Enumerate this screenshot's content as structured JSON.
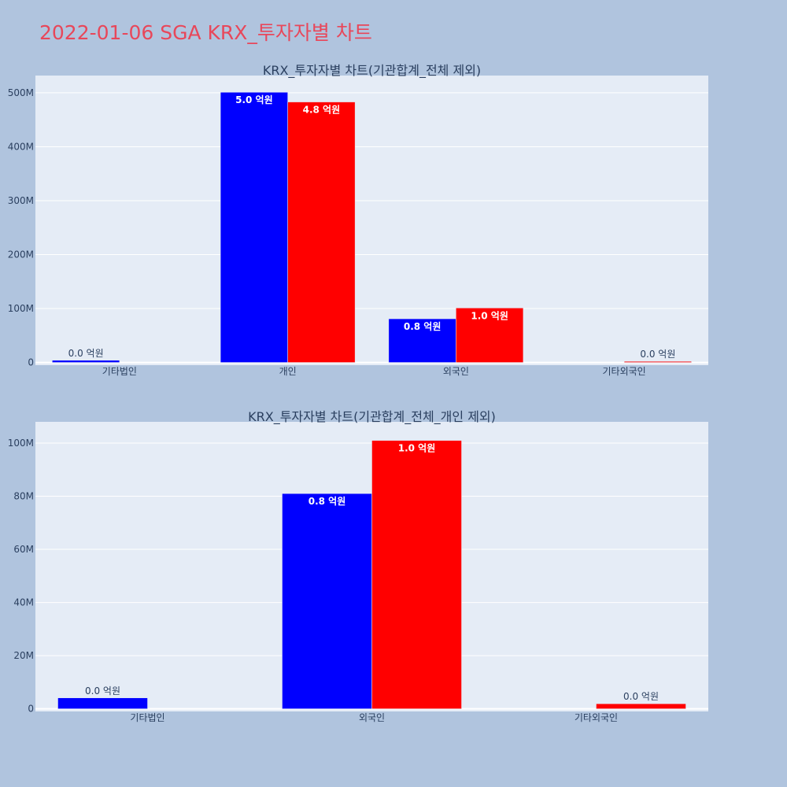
{
  "page": {
    "title": "2022-01-06 SGA KRX_투자자별 차트",
    "title_color": "#e8475a",
    "background": "#b0c4de",
    "plot_background": "#e5ecf6"
  },
  "chart_data": [
    {
      "type": "bar",
      "title": "KRX_투자자별 차트(기관합계_전체 제외)",
      "categories": [
        "기타법인",
        "개인",
        "외국인",
        "기타외국인"
      ],
      "series": [
        {
          "color": "#0000ff",
          "values": [
            4000000,
            501000000,
            81000000,
            0
          ],
          "labels": [
            "0.0 억원",
            "5.0 억원",
            "0.8 억원",
            ""
          ]
        },
        {
          "color": "#ff0000",
          "values": [
            0,
            483000000,
            101000000,
            2000000
          ],
          "labels": [
            "",
            "4.8 억원",
            "1.0 억원",
            "0.0 억원"
          ]
        }
      ],
      "yticks": [
        {
          "value": 0,
          "label": "0"
        },
        {
          "value": 100000000,
          "label": "100M"
        },
        {
          "value": 200000000,
          "label": "200M"
        },
        {
          "value": 300000000,
          "label": "300M"
        },
        {
          "value": 400000000,
          "label": "400M"
        },
        {
          "value": 500000000,
          "label": "500M"
        }
      ],
      "ylim": [
        -5000000,
        532000000
      ],
      "grid": true
    },
    {
      "type": "bar",
      "title": "KRX_투자자별 차트(기관합계_전체_개인 제외)",
      "categories": [
        "기타법인",
        "외국인",
        "기타외국인"
      ],
      "series": [
        {
          "color": "#0000ff",
          "values": [
            4100000,
            81000000,
            0
          ],
          "labels": [
            "0.0 억원",
            "0.8 억원",
            ""
          ]
        },
        {
          "color": "#ff0000",
          "values": [
            0,
            101000000,
            1900000
          ],
          "labels": [
            "",
            "1.0 억원",
            "0.0 억원"
          ]
        }
      ],
      "yticks": [
        {
          "value": 0,
          "label": "0"
        },
        {
          "value": 20000000,
          "label": "20M"
        },
        {
          "value": 40000000,
          "label": "40M"
        },
        {
          "value": 60000000,
          "label": "60M"
        },
        {
          "value": 80000000,
          "label": "80M"
        },
        {
          "value": 100000000,
          "label": "100M"
        }
      ],
      "ylim": [
        -1000000,
        108000000
      ],
      "grid": true
    }
  ]
}
